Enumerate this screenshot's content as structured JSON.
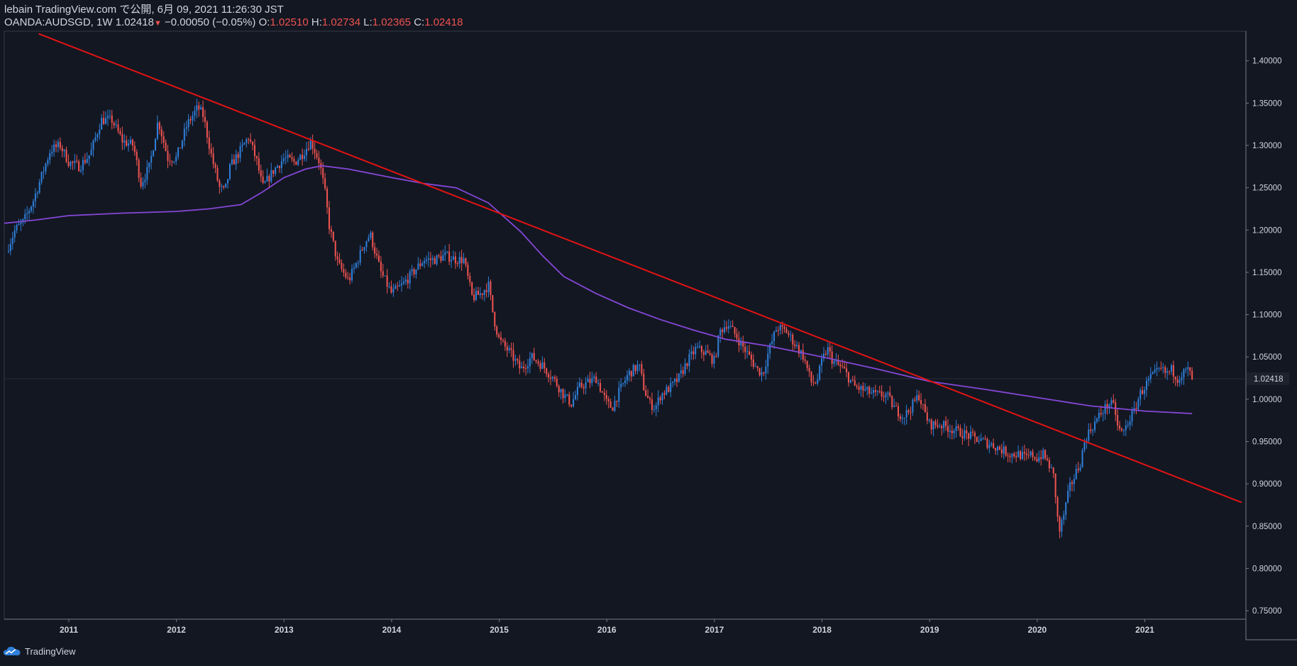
{
  "header": {
    "publisher_line": "lebain TradingView.com で公開, 6月 09, 2021 11:26:30 JST",
    "symbol": "OANDA:AUDSGD, 1W",
    "last_price": "1.02418",
    "change": "−0.00050 (−0.05%)",
    "open_label": "O:",
    "open": "1.02510",
    "high_label": "H:",
    "high": "1.02734",
    "low_label": "L:",
    "low": "1.02365",
    "close_label": "C:",
    "close": "1.02418"
  },
  "brand": {
    "name": "TradingView",
    "icon": "tradingview-cloud-icon"
  },
  "colors": {
    "background": "#131722",
    "up_candle": "#2f7fd9",
    "down_candle": "#ef5350",
    "trend_line": "#e31313",
    "moving_average": "#8447d6",
    "axis_line": "#787b86",
    "price_tag": "#1e222d"
  },
  "chart_data": {
    "type": "candlestick",
    "symbol": "OANDA:AUDSGD",
    "interval": "1W",
    "y_axis": {
      "position": "right",
      "range": [
        0.74,
        1.435
      ],
      "ticks": [
        "1.40000",
        "1.35000",
        "1.30000",
        "1.25000",
        "1.20000",
        "1.15000",
        "1.10000",
        "1.05000",
        "1.00000",
        "0.95000",
        "0.90000",
        "0.85000",
        "0.80000",
        "0.75000"
      ],
      "current_price_tag": "1.02418"
    },
    "x_axis": {
      "range": [
        2010.4,
        2021.9
      ],
      "ticks": [
        "2011",
        "2012",
        "2013",
        "2014",
        "2015",
        "2016",
        "2017",
        "2018",
        "2019",
        "2020",
        "2021"
      ]
    },
    "price_path": [
      [
        2010.42,
        1.175
      ],
      [
        2010.5,
        1.2
      ],
      [
        2010.58,
        1.21
      ],
      [
        2010.67,
        1.235
      ],
      [
        2010.75,
        1.265
      ],
      [
        2010.83,
        1.295
      ],
      [
        2010.92,
        1.3
      ],
      [
        2011.0,
        1.28
      ],
      [
        2011.1,
        1.275
      ],
      [
        2011.2,
        1.29
      ],
      [
        2011.3,
        1.33
      ],
      [
        2011.4,
        1.33
      ],
      [
        2011.5,
        1.305
      ],
      [
        2011.6,
        1.3
      ],
      [
        2011.67,
        1.255
      ],
      [
        2011.75,
        1.275
      ],
      [
        2011.83,
        1.33
      ],
      [
        2011.92,
        1.285
      ],
      [
        2012.0,
        1.285
      ],
      [
        2012.1,
        1.325
      ],
      [
        2012.2,
        1.345
      ],
      [
        2012.25,
        1.335
      ],
      [
        2012.33,
        1.285
      ],
      [
        2012.4,
        1.25
      ],
      [
        2012.45,
        1.245
      ],
      [
        2012.5,
        1.275
      ],
      [
        2012.6,
        1.295
      ],
      [
        2012.67,
        1.31
      ],
      [
        2012.75,
        1.28
      ],
      [
        2012.8,
        1.25
      ],
      [
        2012.9,
        1.27
      ],
      [
        2013.0,
        1.285
      ],
      [
        2013.1,
        1.28
      ],
      [
        2013.17,
        1.29
      ],
      [
        2013.25,
        1.305
      ],
      [
        2013.33,
        1.28
      ],
      [
        2013.38,
        1.245
      ],
      [
        2013.42,
        1.205
      ],
      [
        2013.5,
        1.16
      ],
      [
        2013.6,
        1.14
      ],
      [
        2013.67,
        1.16
      ],
      [
        2013.75,
        1.185
      ],
      [
        2013.8,
        1.195
      ],
      [
        2013.9,
        1.15
      ],
      [
        2014.0,
        1.125
      ],
      [
        2014.1,
        1.135
      ],
      [
        2014.2,
        1.15
      ],
      [
        2014.3,
        1.165
      ],
      [
        2014.4,
        1.165
      ],
      [
        2014.5,
        1.17
      ],
      [
        2014.6,
        1.165
      ],
      [
        2014.67,
        1.165
      ],
      [
        2014.75,
        1.12
      ],
      [
        2014.83,
        1.125
      ],
      [
        2014.9,
        1.135
      ],
      [
        2014.95,
        1.095
      ],
      [
        2015.0,
        1.07
      ],
      [
        2015.1,
        1.055
      ],
      [
        2015.2,
        1.035
      ],
      [
        2015.3,
        1.05
      ],
      [
        2015.4,
        1.04
      ],
      [
        2015.5,
        1.025
      ],
      [
        2015.6,
        1.005
      ],
      [
        2015.67,
        0.995
      ],
      [
        2015.75,
        1.015
      ],
      [
        2015.83,
        1.02
      ],
      [
        2015.9,
        1.025
      ],
      [
        2016.0,
        0.995
      ],
      [
        2016.05,
        0.99
      ],
      [
        2016.1,
        1.005
      ],
      [
        2016.2,
        1.03
      ],
      [
        2016.3,
        1.04
      ],
      [
        2016.35,
        1.01
      ],
      [
        2016.4,
        0.995
      ],
      [
        2016.45,
        0.99
      ],
      [
        2016.5,
        1.005
      ],
      [
        2016.6,
        1.015
      ],
      [
        2016.67,
        1.025
      ],
      [
        2016.75,
        1.045
      ],
      [
        2016.83,
        1.06
      ],
      [
        2016.92,
        1.055
      ],
      [
        2017.0,
        1.045
      ],
      [
        2017.05,
        1.08
      ],
      [
        2017.12,
        1.09
      ],
      [
        2017.2,
        1.075
      ],
      [
        2017.3,
        1.055
      ],
      [
        2017.4,
        1.035
      ],
      [
        2017.45,
        1.03
      ],
      [
        2017.5,
        1.055
      ],
      [
        2017.58,
        1.085
      ],
      [
        2017.67,
        1.08
      ],
      [
        2017.75,
        1.065
      ],
      [
        2017.83,
        1.05
      ],
      [
        2017.9,
        1.02
      ],
      [
        2017.95,
        1.02
      ],
      [
        2018.0,
        1.045
      ],
      [
        2018.05,
        1.06
      ],
      [
        2018.1,
        1.045
      ],
      [
        2018.2,
        1.035
      ],
      [
        2018.3,
        1.015
      ],
      [
        2018.4,
        1.01
      ],
      [
        2018.5,
        1.005
      ],
      [
        2018.6,
        1.005
      ],
      [
        2018.67,
        0.99
      ],
      [
        2018.75,
        0.98
      ],
      [
        2018.8,
        0.985
      ],
      [
        2018.9,
        1.005
      ],
      [
        2018.95,
        0.985
      ],
      [
        2019.0,
        0.97
      ],
      [
        2019.1,
        0.97
      ],
      [
        2019.2,
        0.965
      ],
      [
        2019.3,
        0.96
      ],
      [
        2019.4,
        0.955
      ],
      [
        2019.5,
        0.95
      ],
      [
        2019.6,
        0.945
      ],
      [
        2019.67,
        0.94
      ],
      [
        2019.75,
        0.935
      ],
      [
        2019.83,
        0.935
      ],
      [
        2019.9,
        0.93
      ],
      [
        2019.95,
        0.935
      ],
      [
        2020.0,
        0.93
      ],
      [
        2020.05,
        0.935
      ],
      [
        2020.1,
        0.925
      ],
      [
        2020.15,
        0.91
      ],
      [
        2020.18,
        0.875
      ],
      [
        2020.2,
        0.84
      ],
      [
        2020.25,
        0.865
      ],
      [
        2020.3,
        0.895
      ],
      [
        2020.35,
        0.91
      ],
      [
        2020.4,
        0.925
      ],
      [
        2020.45,
        0.955
      ],
      [
        2020.5,
        0.965
      ],
      [
        2020.55,
        0.975
      ],
      [
        2020.6,
        0.985
      ],
      [
        2020.67,
        0.995
      ],
      [
        2020.72,
        0.99
      ],
      [
        2020.75,
        0.965
      ],
      [
        2020.8,
        0.96
      ],
      [
        2020.85,
        0.975
      ],
      [
        2020.9,
        0.985
      ],
      [
        2020.95,
        1.005
      ],
      [
        2021.0,
        1.015
      ],
      [
        2021.05,
        1.025
      ],
      [
        2021.1,
        1.03
      ],
      [
        2021.15,
        1.035
      ],
      [
        2021.2,
        1.03
      ],
      [
        2021.25,
        1.035
      ],
      [
        2021.3,
        1.025
      ],
      [
        2021.35,
        1.03
      ],
      [
        2021.4,
        1.035
      ],
      [
        2021.44,
        1.024
      ]
    ],
    "moving_average": [
      [
        2010.4,
        1.208
      ],
      [
        2010.7,
        1.212
      ],
      [
        2011.0,
        1.217
      ],
      [
        2011.5,
        1.22
      ],
      [
        2012.0,
        1.222
      ],
      [
        2012.3,
        1.225
      ],
      [
        2012.6,
        1.23
      ],
      [
        2012.8,
        1.245
      ],
      [
        2013.0,
        1.262
      ],
      [
        2013.2,
        1.272
      ],
      [
        2013.35,
        1.276
      ],
      [
        2013.6,
        1.272
      ],
      [
        2014.0,
        1.262
      ],
      [
        2014.3,
        1.255
      ],
      [
        2014.6,
        1.25
      ],
      [
        2014.9,
        1.232
      ],
      [
        2015.2,
        1.198
      ],
      [
        2015.4,
        1.17
      ],
      [
        2015.6,
        1.145
      ],
      [
        2015.9,
        1.125
      ],
      [
        2016.2,
        1.108
      ],
      [
        2016.5,
        1.094
      ],
      [
        2016.8,
        1.082
      ],
      [
        2017.1,
        1.071
      ],
      [
        2017.5,
        1.063
      ],
      [
        2018.0,
        1.05
      ],
      [
        2018.5,
        1.036
      ],
      [
        2019.0,
        1.021
      ],
      [
        2019.5,
        1.012
      ],
      [
        2020.0,
        1.002
      ],
      [
        2020.5,
        0.992
      ],
      [
        2021.0,
        0.986
      ],
      [
        2021.44,
        0.983
      ]
    ],
    "trend_line": {
      "x1": 2010.72,
      "y1": 1.432,
      "x2": 2021.9,
      "y2": 0.878
    }
  }
}
